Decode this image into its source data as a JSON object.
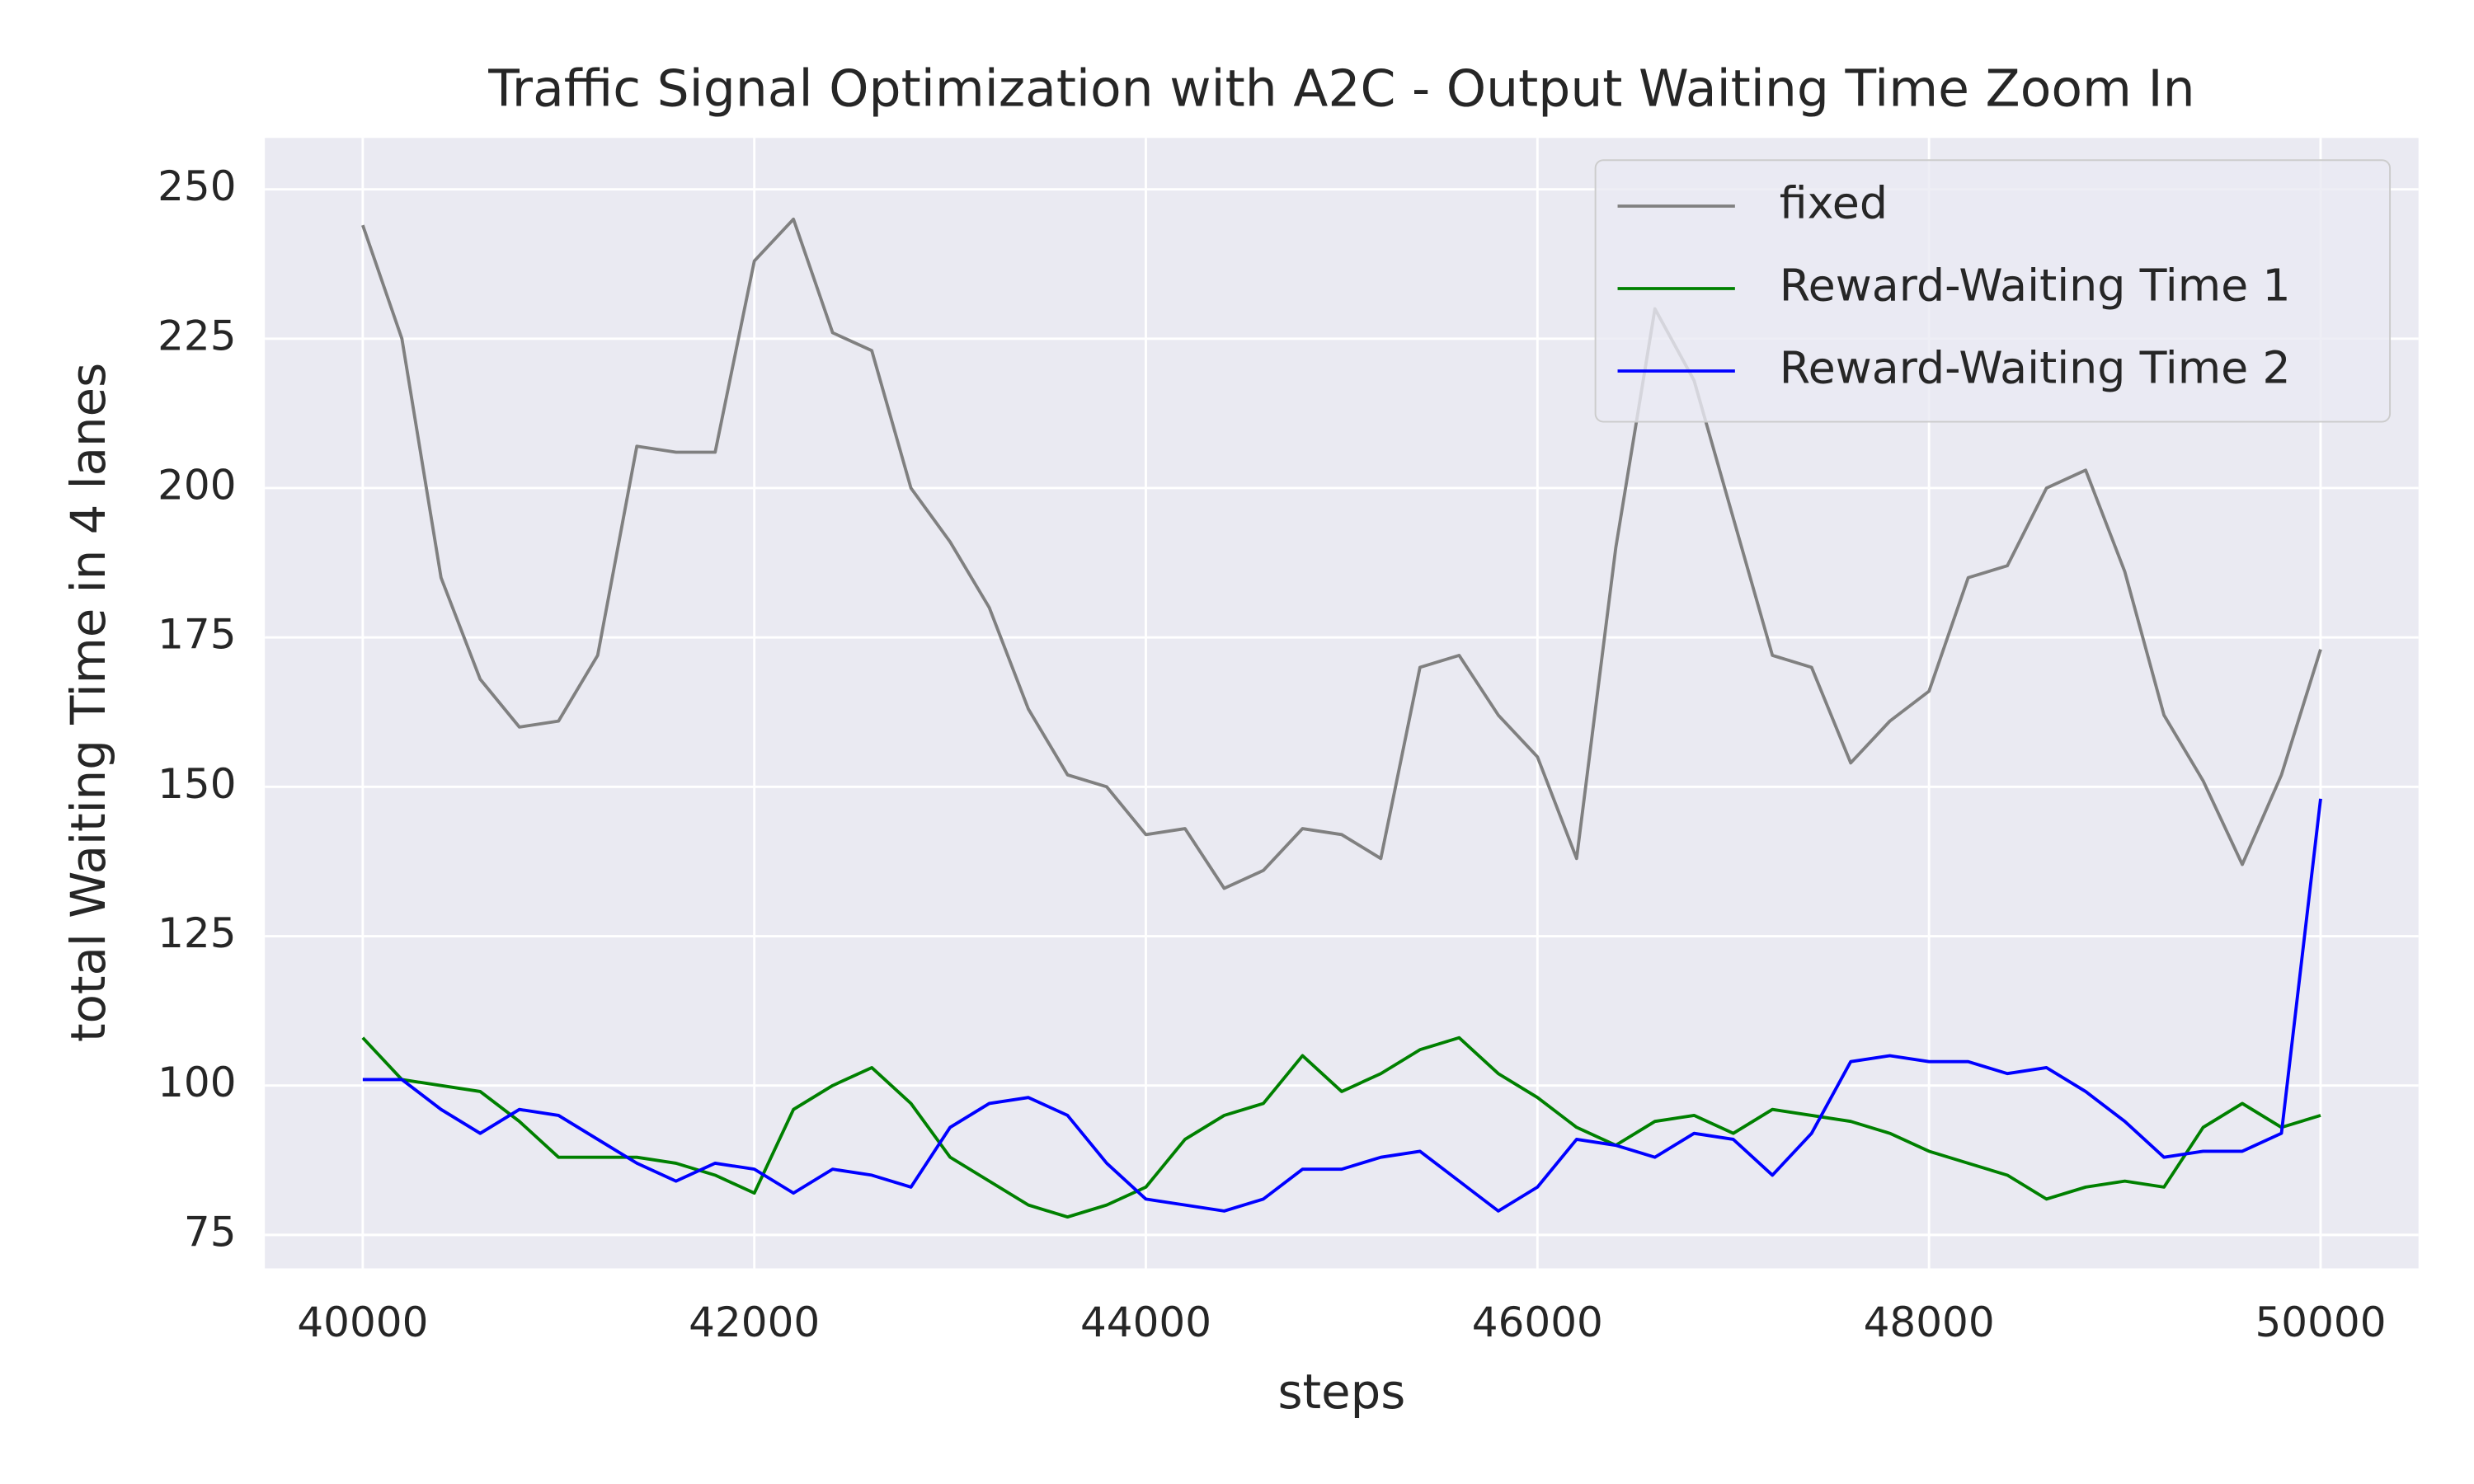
{
  "chart_data": {
    "type": "line",
    "title": "Traffic Signal Optimization with A2C - Output Waiting Time Zoom In",
    "xlabel": "steps",
    "ylabel": "total Waiting Time in 4 lanes",
    "x": [
      40000,
      40200,
      40400,
      40600,
      40800,
      41000,
      41200,
      41400,
      41600,
      41800,
      42000,
      42200,
      42400,
      42600,
      42800,
      43000,
      43200,
      43400,
      43600,
      43800,
      44000,
      44200,
      44400,
      44600,
      44800,
      45000,
      45200,
      45400,
      45600,
      45800,
      46000,
      46200,
      46400,
      46600,
      46800,
      47000,
      47200,
      47400,
      47600,
      47800,
      48000,
      48200,
      48400,
      48600,
      48800,
      49000,
      49200,
      49400,
      49600,
      49800,
      50000
    ],
    "series": [
      {
        "name": "fixed",
        "color": "#808080",
        "values": [
          244,
          225,
          185,
          168,
          160,
          161,
          172,
          207,
          206,
          206,
          238,
          245,
          226,
          223,
          200,
          191,
          180,
          163,
          152,
          150,
          142,
          143,
          133,
          136,
          143,
          142,
          138,
          170,
          172,
          162,
          155,
          138,
          190,
          230,
          218,
          195,
          172,
          170,
          154,
          161,
          166,
          185,
          187,
          200,
          203,
          186,
          162,
          151,
          137,
          152,
          173
        ]
      },
      {
        "name": "Reward-Waiting Time 1",
        "color": "#008000",
        "values": [
          108,
          101,
          100,
          99,
          94,
          88,
          88,
          88,
          87,
          85,
          82,
          96,
          100,
          103,
          97,
          88,
          84,
          80,
          78,
          80,
          83,
          91,
          95,
          97,
          105,
          99,
          102,
          106,
          108,
          102,
          98,
          93,
          90,
          94,
          95,
          92,
          96,
          95,
          94,
          92,
          89,
          87,
          85,
          81,
          83,
          84,
          83,
          93,
          97,
          93,
          95
        ]
      },
      {
        "name": "Reward-Waiting Time 2",
        "color": "#0000ff",
        "values": [
          101,
          101,
          96,
          92,
          96,
          95,
          91,
          87,
          84,
          87,
          86,
          82,
          86,
          85,
          83,
          93,
          97,
          98,
          95,
          87,
          81,
          80,
          79,
          81,
          86,
          86,
          88,
          89,
          84,
          79,
          83,
          91,
          90,
          88,
          92,
          91,
          85,
          92,
          104,
          105,
          104,
          104,
          102,
          103,
          99,
          94,
          88,
          89,
          89,
          92,
          148
        ]
      }
    ],
    "xlim": [
      39500,
      50500
    ],
    "ylim": [
      69.4,
      258.6
    ],
    "xticks": [
      40000,
      42000,
      44000,
      46000,
      48000,
      50000
    ],
    "yticks": [
      75,
      100,
      125,
      150,
      175,
      200,
      225,
      250
    ],
    "grid": true,
    "legend": "upper right"
  }
}
